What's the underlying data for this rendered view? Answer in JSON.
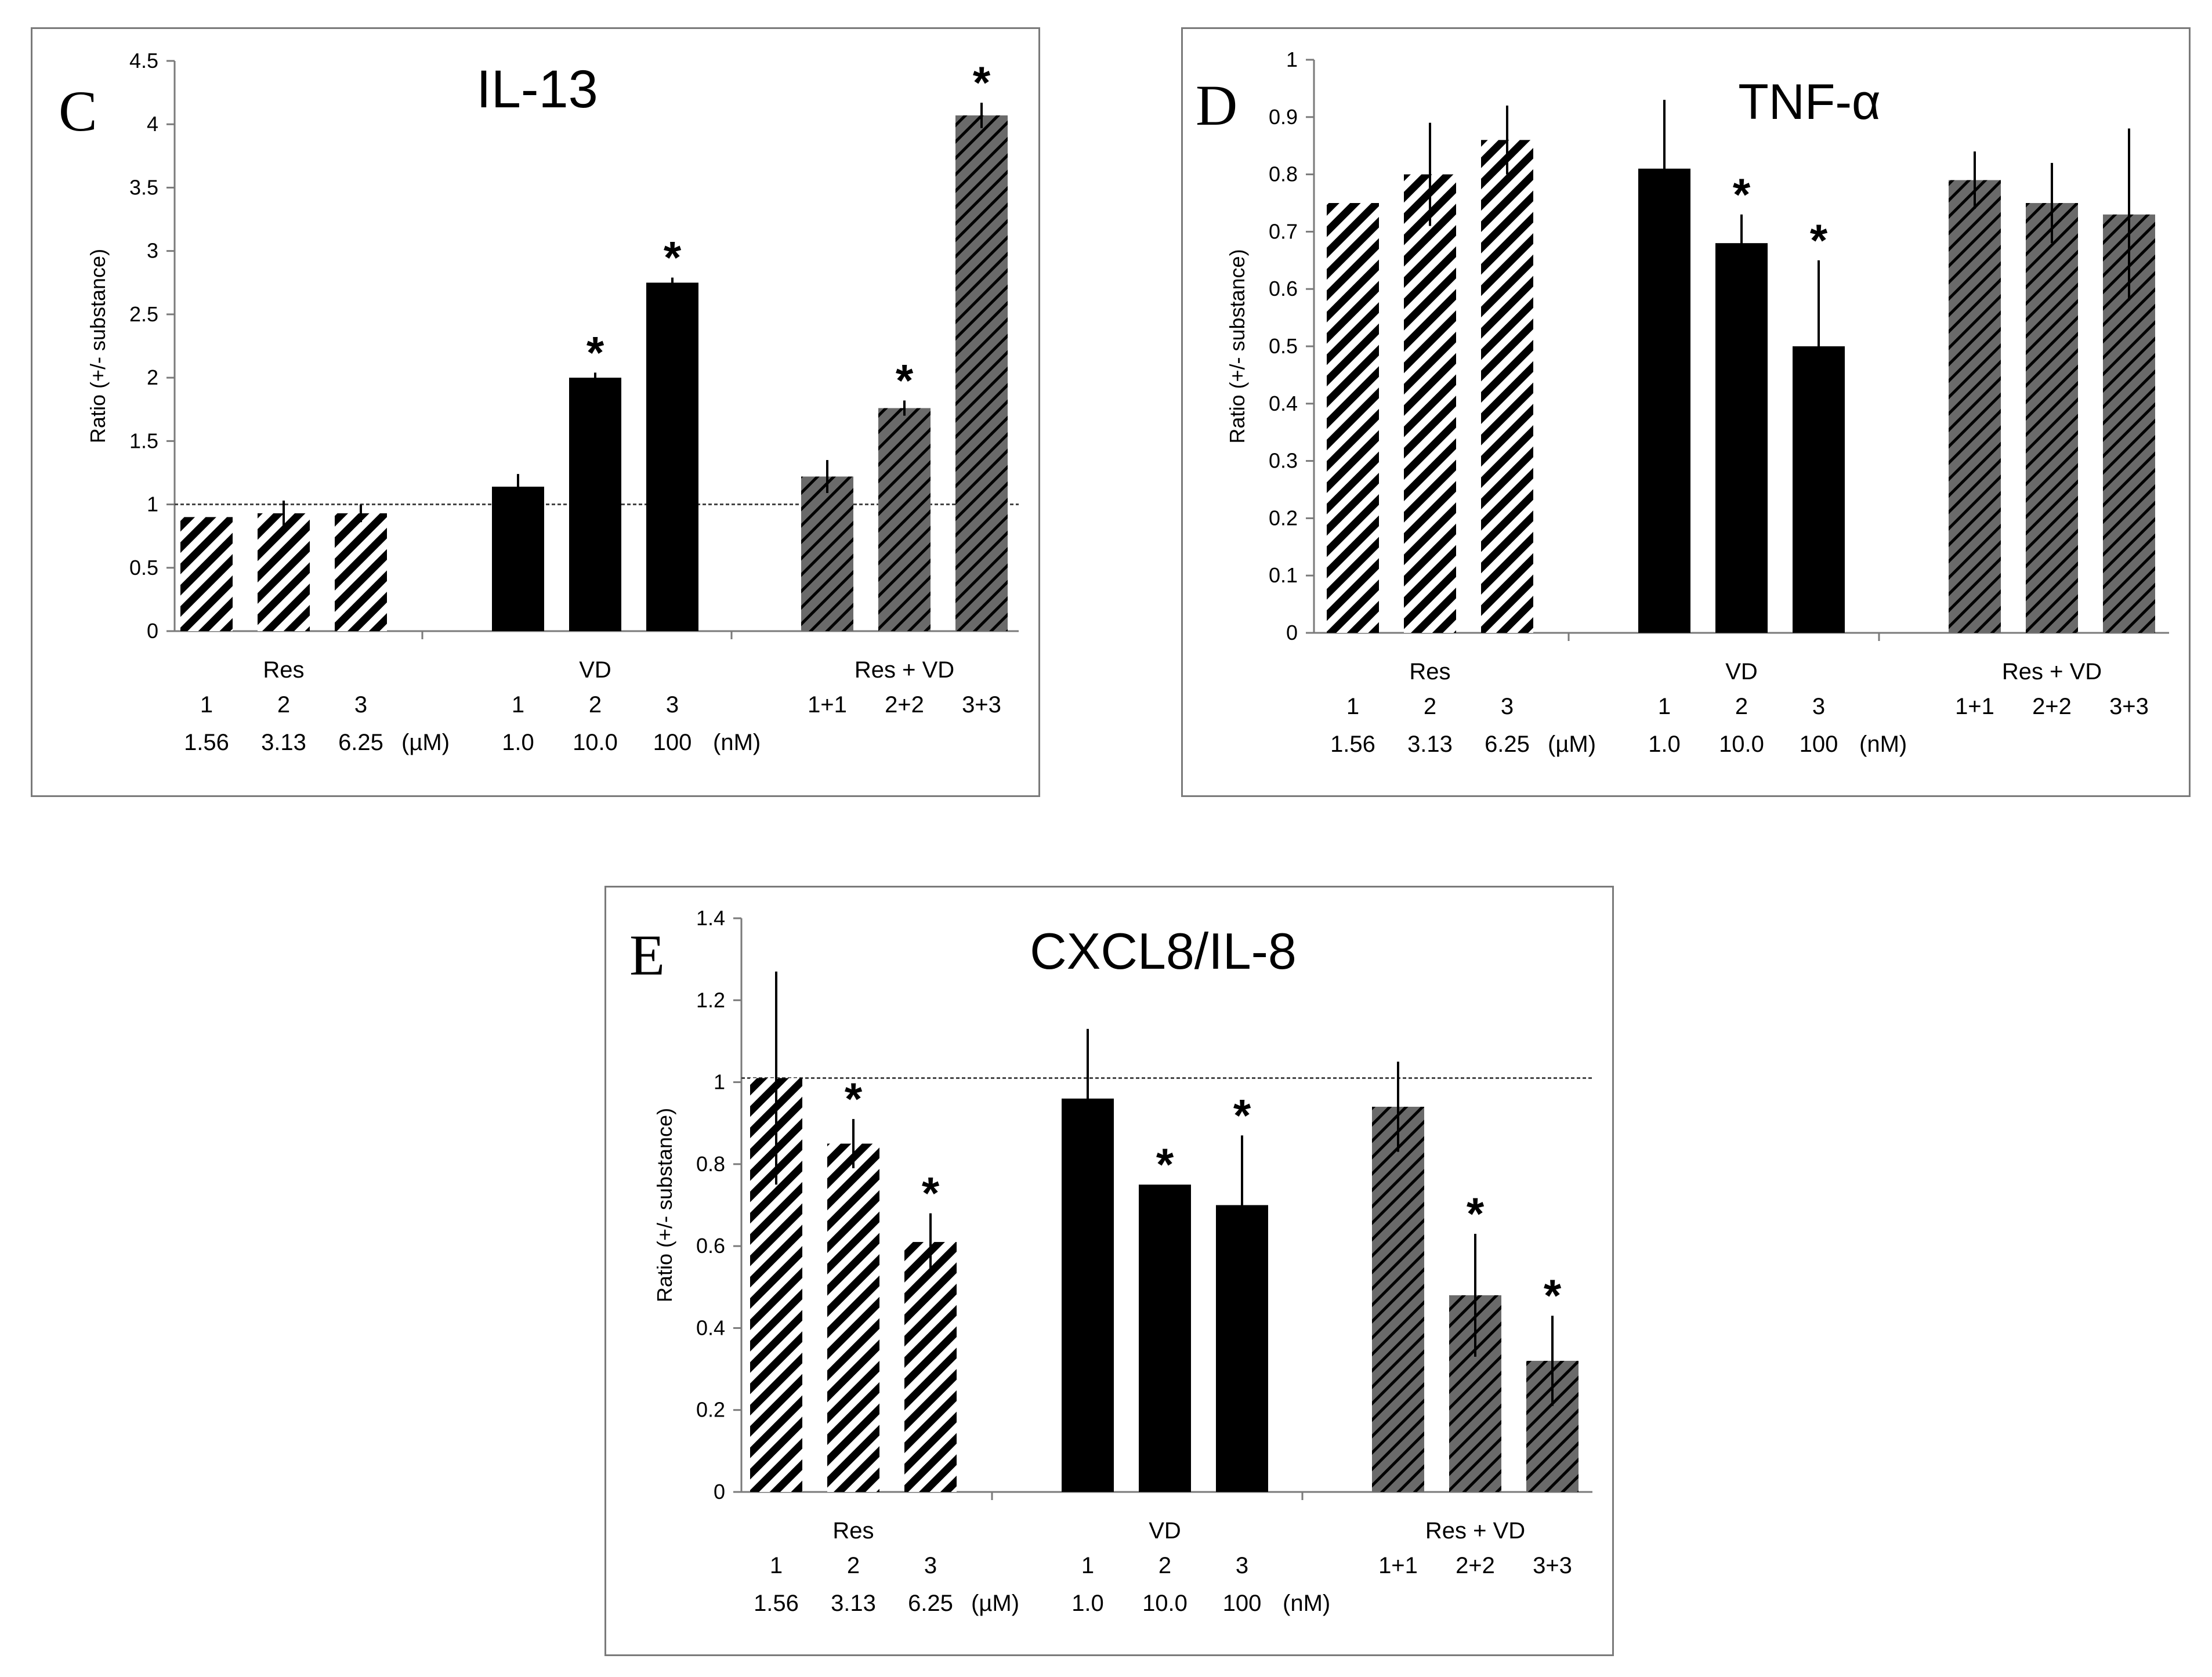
{
  "chart_data": [
    {
      "type": "bar",
      "panel_letter": "C",
      "title": "IL-13",
      "ylabel": "Ratio (+/- substance)",
      "ylim": [
        0,
        4.5
      ],
      "ytick_step": 0.5,
      "ytick_labels": [
        "0",
        "0.5",
        "1",
        "1.5",
        "2",
        "2.5",
        "3",
        "3.5",
        "4",
        "4.5"
      ],
      "reference_line": 1,
      "groups": [
        {
          "name": "Res",
          "fill": "hatch-white",
          "codes": [
            "1",
            "2",
            "3"
          ],
          "concentrations": [
            "1.56",
            "3.13",
            "6.25"
          ],
          "unit": "(µM)",
          "values": [
            0.9,
            0.93,
            0.93
          ],
          "errors": [
            0.0,
            0.1,
            0.07
          ],
          "significant": [
            false,
            false,
            false
          ]
        },
        {
          "name": "VD",
          "fill": "solid-black",
          "codes": [
            "1",
            "2",
            "3"
          ],
          "concentrations": [
            "1.0",
            "10.0",
            "100"
          ],
          "unit": "(nM)",
          "values": [
            1.14,
            2.0,
            2.75
          ],
          "errors": [
            0.1,
            0.04,
            0.04
          ],
          "significant": [
            false,
            true,
            true
          ]
        },
        {
          "name": "Res + VD",
          "fill": "hatch-gray",
          "codes": [
            "1+1",
            "2+2",
            "3+3"
          ],
          "concentrations": [
            "",
            "",
            ""
          ],
          "unit": "",
          "values": [
            1.22,
            1.76,
            4.07
          ],
          "errors": [
            0.13,
            0.06,
            0.1
          ],
          "significant": [
            false,
            true,
            true
          ]
        }
      ]
    },
    {
      "type": "bar",
      "panel_letter": "D",
      "title": "TNF-α",
      "ylabel": "Ratio (+/- substance)",
      "ylim": [
        0,
        1
      ],
      "ytick_step": 0.1,
      "ytick_labels": [
        "0",
        "0.1",
        "0.2",
        "0.3",
        "0.4",
        "0.5",
        "0.6",
        "0.7",
        "0.8",
        "0.9",
        "1"
      ],
      "reference_line": null,
      "groups": [
        {
          "name": "Res",
          "fill": "hatch-white",
          "codes": [
            "1",
            "2",
            "3"
          ],
          "concentrations": [
            "1.56",
            "3.13",
            "6.25"
          ],
          "unit": "(µM)",
          "values": [
            0.75,
            0.8,
            0.86
          ],
          "errors": [
            0.0,
            0.09,
            0.06
          ],
          "significant": [
            false,
            false,
            false
          ]
        },
        {
          "name": "VD",
          "fill": "solid-black",
          "codes": [
            "1",
            "2",
            "3"
          ],
          "concentrations": [
            "1.0",
            "10.0",
            "100"
          ],
          "unit": "(nM)",
          "values": [
            0.81,
            0.68,
            0.5
          ],
          "errors": [
            0.12,
            0.05,
            0.15
          ],
          "significant": [
            false,
            true,
            true
          ]
        },
        {
          "name": "Res + VD",
          "fill": "hatch-gray",
          "codes": [
            "1+1",
            "2+2",
            "3+3"
          ],
          "concentrations": [
            "",
            "",
            ""
          ],
          "unit": "",
          "values": [
            0.79,
            0.75,
            0.73
          ],
          "errors": [
            0.05,
            0.07,
            0.15
          ],
          "significant": [
            false,
            false,
            false
          ]
        }
      ]
    },
    {
      "type": "bar",
      "panel_letter": "E",
      "title": "CXCL8/IL-8",
      "ylabel": "Ratio (+/- substance)",
      "ylim": [
        0,
        1.4
      ],
      "ytick_step": 0.2,
      "ytick_labels": [
        "0",
        "0.2",
        "0.4",
        "0.6",
        "0.8",
        "1",
        "1.2",
        "1.4"
      ],
      "reference_line": 1.01,
      "groups": [
        {
          "name": "Res",
          "fill": "hatch-white",
          "codes": [
            "1",
            "2",
            "3"
          ],
          "concentrations": [
            "1.56",
            "3.13",
            "6.25"
          ],
          "unit": "(µM)",
          "values": [
            1.01,
            0.85,
            0.61
          ],
          "errors": [
            0.26,
            0.06,
            0.07
          ],
          "significant": [
            false,
            true,
            true
          ]
        },
        {
          "name": "VD",
          "fill": "solid-black",
          "codes": [
            "1",
            "2",
            "3"
          ],
          "concentrations": [
            "1.0",
            "10.0",
            "100"
          ],
          "unit": "(nM)",
          "values": [
            0.96,
            0.75,
            0.7
          ],
          "errors": [
            0.17,
            0.0,
            0.17
          ],
          "significant": [
            false,
            true,
            true
          ]
        },
        {
          "name": "Res + VD",
          "fill": "hatch-gray",
          "codes": [
            "1+1",
            "2+2",
            "3+3"
          ],
          "concentrations": [
            "",
            "",
            ""
          ],
          "unit": "",
          "values": [
            0.94,
            0.48,
            0.32
          ],
          "errors": [
            0.11,
            0.15,
            0.11
          ],
          "significant": [
            false,
            true,
            true
          ]
        }
      ]
    }
  ],
  "significance_marker": "*",
  "colors": {
    "bar_black": "#000000",
    "bar_gray": "#6a6a6a",
    "hatch_light_bg": "#ffffff",
    "axis": "#7a7a7a",
    "reference_line": "#444444",
    "panel_border": "#7a7a7a"
  }
}
